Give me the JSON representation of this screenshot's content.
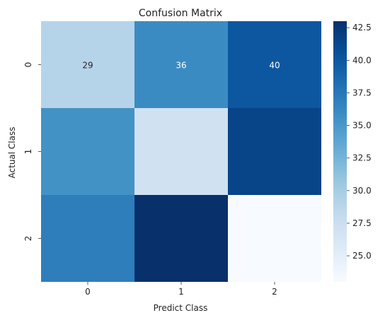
{
  "chart_data": {
    "type": "heatmap",
    "title": "Confusion Matrix",
    "xlabel": "Predict Class",
    "ylabel": "Actual Class",
    "x_categories": [
      "0",
      "1",
      "2"
    ],
    "y_categories": [
      "0",
      "1",
      "2"
    ],
    "values": [
      [
        29,
        36,
        40
      ],
      [
        35.5,
        27,
        41.5
      ],
      [
        37,
        43,
        23
      ]
    ],
    "annotations": [
      [
        "29",
        "36",
        "40"
      ],
      [
        "",
        "",
        ""
      ],
      [
        "",
        "",
        ""
      ]
    ],
    "colormap": "Blues",
    "colorbar": {
      "vmin": 23,
      "vmax": 43,
      "ticks": [
        25.0,
        27.5,
        30.0,
        32.5,
        35.0,
        37.5,
        40.0,
        42.5
      ],
      "tick_labels": [
        "25.0",
        "27.5",
        "30.0",
        "32.5",
        "35.0",
        "37.5",
        "40.0",
        "42.5"
      ]
    }
  }
}
